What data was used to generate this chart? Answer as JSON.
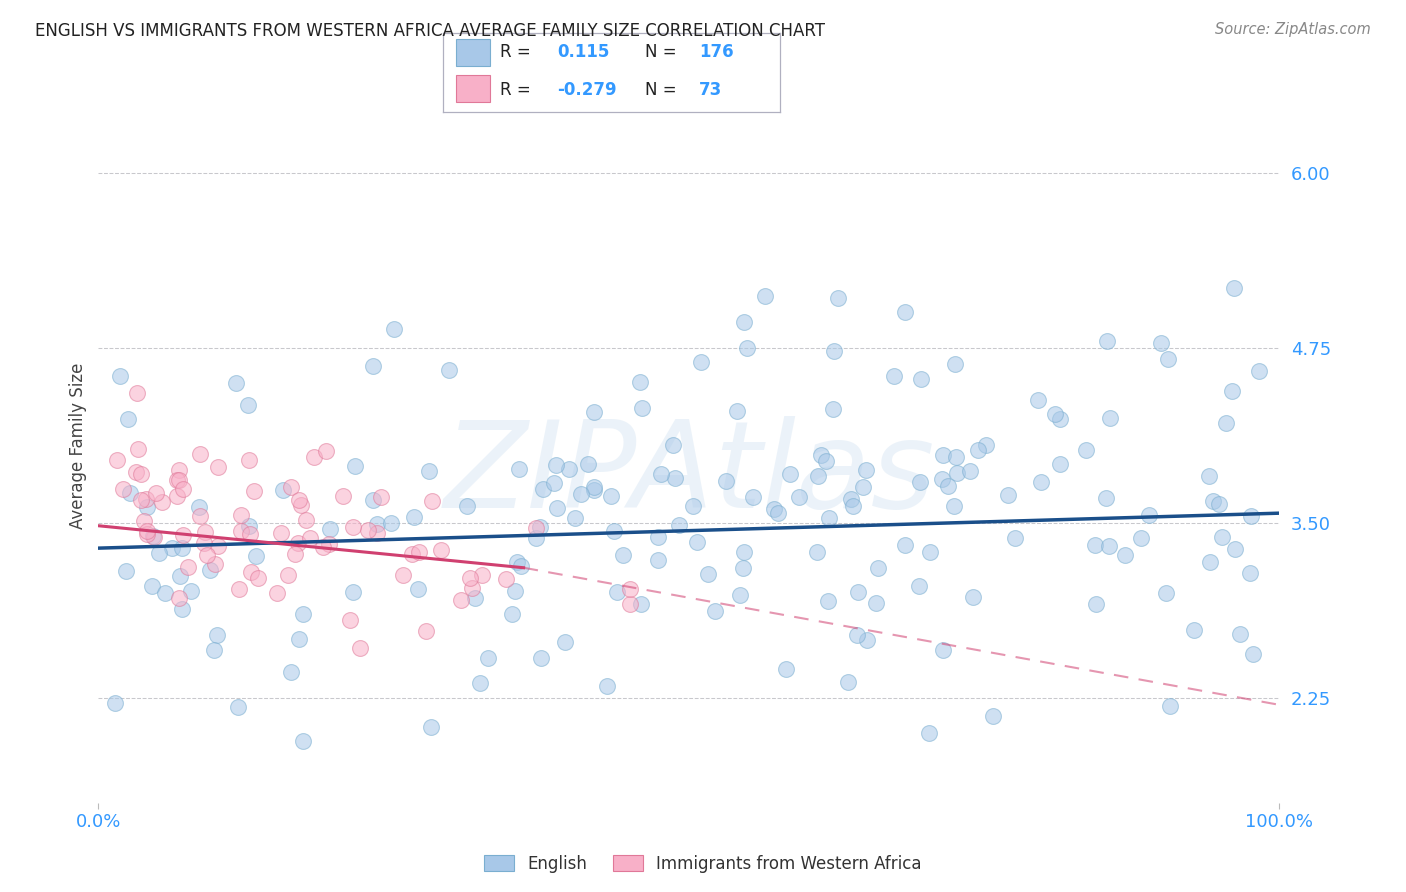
{
  "title": "ENGLISH VS IMMIGRANTS FROM WESTERN AFRICA AVERAGE FAMILY SIZE CORRELATION CHART",
  "source": "Source: ZipAtlas.com",
  "ylabel": "Average Family Size",
  "watermark": "ZIPAtlas",
  "english_R": 0.115,
  "english_N": 176,
  "immigrants_R": -0.279,
  "immigrants_N": 73,
  "english_color": "#a8c8e8",
  "english_edge_color": "#7aaed0",
  "english_line_color": "#1a4f8a",
  "immigrants_color": "#f8b0c8",
  "immigrants_edge_color": "#e07898",
  "immigrants_line_color": "#d04070",
  "background_color": "#ffffff",
  "grid_color": "#c8c8cc",
  "title_color": "#222222",
  "axis_tick_color": "#3399ff",
  "yticks": [
    2.25,
    3.5,
    4.75,
    6.0
  ],
  "ymin": 1.5,
  "ymax": 6.6,
  "xmin": 0.0,
  "xmax": 1.0,
  "scatter_size": 130,
  "scatter_alpha": 0.55,
  "eng_line_y0": 3.32,
  "eng_line_y1": 3.57,
  "imm_line_solid_x0": 0.0,
  "imm_line_solid_x1": 0.36,
  "imm_line_solid_y0": 3.48,
  "imm_line_solid_y1": 3.18,
  "imm_line_dash_x0": 0.36,
  "imm_line_dash_x1": 1.0,
  "imm_line_dash_y0": 3.18,
  "imm_line_dash_y1": 2.2
}
